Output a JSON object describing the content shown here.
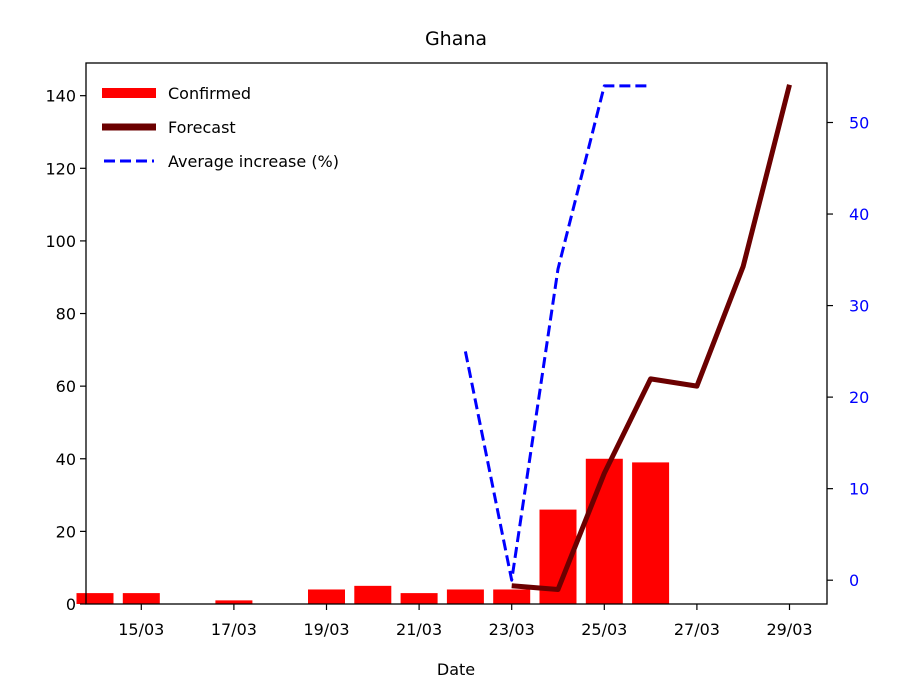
{
  "chart_data": {
    "type": "bar",
    "title": "Ghana",
    "xlabel": "Date",
    "ylabel": "",
    "y2label": "",
    "x_tick_labels": [
      "15/03",
      "17/03",
      "19/03",
      "21/03",
      "23/03",
      "25/03",
      "27/03",
      "29/03"
    ],
    "ylim": [
      0,
      149
    ],
    "y_ticks": [
      0,
      20,
      40,
      60,
      80,
      100,
      120,
      140
    ],
    "y2lim": [
      -2.6,
      56.5
    ],
    "y2_ticks": [
      0,
      10,
      20,
      30,
      40,
      50
    ],
    "y2_color": "#0000ff",
    "grid": false,
    "legend_position": "top-left",
    "series": [
      {
        "name": "Confirmed",
        "kind": "bar",
        "color": "#ff0000",
        "axis": "left",
        "points": [
          {
            "x": "14/03",
            "y": 3
          },
          {
            "x": "15/03",
            "y": 3
          },
          {
            "x": "16/03",
            "y": 0
          },
          {
            "x": "17/03",
            "y": 1
          },
          {
            "x": "18/03",
            "y": 0
          },
          {
            "x": "19/03",
            "y": 4
          },
          {
            "x": "20/03",
            "y": 5
          },
          {
            "x": "21/03",
            "y": 3
          },
          {
            "x": "22/03",
            "y": 4
          },
          {
            "x": "23/03",
            "y": 4
          },
          {
            "x": "24/03",
            "y": 26
          },
          {
            "x": "25/03",
            "y": 40
          },
          {
            "x": "26/03",
            "y": 39
          }
        ]
      },
      {
        "name": "Forecast",
        "kind": "line",
        "color": "#6b0000",
        "axis": "left",
        "points": [
          {
            "x": "23/03",
            "y": 5
          },
          {
            "x": "24/03",
            "y": 4
          },
          {
            "x": "25/03",
            "y": 36
          },
          {
            "x": "26/03",
            "y": 62
          },
          {
            "x": "27/03",
            "y": 60
          },
          {
            "x": "28/03",
            "y": 93
          },
          {
            "x": "29/03",
            "y": 143
          }
        ]
      },
      {
        "name": "Average increase (%)",
        "kind": "dashed-line",
        "color": "#0000ff",
        "axis": "right",
        "points": [
          {
            "x": "22/03",
            "y": 25
          },
          {
            "x": "23/03",
            "y": 0
          },
          {
            "x": "24/03",
            "y": 34
          },
          {
            "x": "25/03",
            "y": 54
          },
          {
            "x": "26/03",
            "y": 54
          }
        ]
      }
    ]
  }
}
